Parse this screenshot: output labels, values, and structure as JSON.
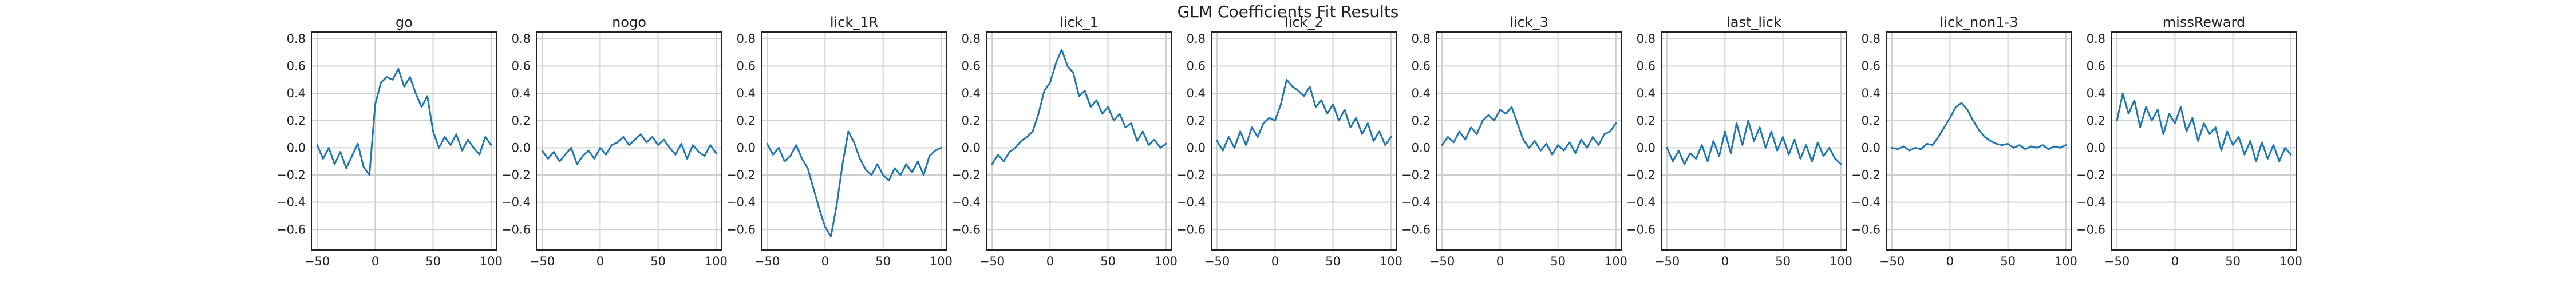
{
  "figure": {
    "title": "GLM Coefficients Fit Results"
  },
  "style": {
    "line_color": "#1f77b4",
    "grid_color": "#cfcfcf",
    "frame_color": "#222222",
    "background": "#ffffff"
  },
  "chart_data": [
    {
      "type": "line",
      "title": "go",
      "xlim": [
        -55,
        105
      ],
      "ylim": [
        -0.75,
        0.85
      ],
      "xticks": [
        -50,
        0,
        50,
        100
      ],
      "yticks": [
        -0.6,
        -0.4,
        -0.2,
        0.0,
        0.2,
        0.4,
        0.6,
        0.8
      ],
      "grid": true,
      "x": [
        -50,
        -45,
        -40,
        -35,
        -30,
        -25,
        -20,
        -15,
        -10,
        -5,
        0,
        5,
        10,
        15,
        20,
        25,
        30,
        35,
        40,
        45,
        50,
        55,
        60,
        65,
        70,
        75,
        80,
        85,
        90,
        95,
        100
      ],
      "y": [
        0.02,
        -0.08,
        0.0,
        -0.12,
        -0.03,
        -0.15,
        -0.06,
        0.03,
        -0.14,
        -0.2,
        0.32,
        0.48,
        0.52,
        0.5,
        0.58,
        0.45,
        0.52,
        0.4,
        0.3,
        0.38,
        0.12,
        0.0,
        0.08,
        0.02,
        0.1,
        -0.02,
        0.06,
        0.0,
        -0.05,
        0.08,
        0.02
      ]
    },
    {
      "type": "line",
      "title": "nogo",
      "xlim": [
        -55,
        105
      ],
      "ylim": [
        -0.75,
        0.85
      ],
      "xticks": [
        -50,
        0,
        50,
        100
      ],
      "yticks": [
        -0.6,
        -0.4,
        -0.2,
        0.0,
        0.2,
        0.4,
        0.6,
        0.8
      ],
      "grid": true,
      "x": [
        -50,
        -45,
        -40,
        -35,
        -30,
        -25,
        -20,
        -15,
        -10,
        -5,
        0,
        5,
        10,
        15,
        20,
        25,
        30,
        35,
        40,
        45,
        50,
        55,
        60,
        65,
        70,
        75,
        80,
        85,
        90,
        95,
        100
      ],
      "y": [
        -0.02,
        -0.08,
        -0.03,
        -0.1,
        -0.05,
        0.0,
        -0.12,
        -0.06,
        -0.02,
        -0.08,
        0.0,
        -0.05,
        0.02,
        0.04,
        0.08,
        0.02,
        0.06,
        0.1,
        0.04,
        0.08,
        0.02,
        0.06,
        0.0,
        -0.05,
        0.03,
        -0.08,
        0.02,
        -0.03,
        -0.06,
        0.02,
        -0.04
      ]
    },
    {
      "type": "line",
      "title": "lick_1R",
      "xlim": [
        -55,
        105
      ],
      "ylim": [
        -0.75,
        0.85
      ],
      "xticks": [
        -50,
        0,
        50,
        100
      ],
      "yticks": [
        -0.6,
        -0.4,
        -0.2,
        0.0,
        0.2,
        0.4,
        0.6,
        0.8
      ],
      "grid": true,
      "x": [
        -50,
        -45,
        -40,
        -35,
        -30,
        -25,
        -20,
        -15,
        -10,
        -5,
        0,
        5,
        10,
        15,
        20,
        25,
        30,
        35,
        40,
        45,
        50,
        55,
        60,
        65,
        70,
        75,
        80,
        85,
        90,
        95,
        100
      ],
      "y": [
        0.03,
        -0.05,
        0.0,
        -0.1,
        -0.06,
        0.02,
        -0.08,
        -0.15,
        -0.3,
        -0.45,
        -0.58,
        -0.65,
        -0.42,
        -0.12,
        0.12,
        0.04,
        -0.08,
        -0.16,
        -0.2,
        -0.12,
        -0.2,
        -0.24,
        -0.15,
        -0.2,
        -0.12,
        -0.18,
        -0.1,
        -0.2,
        -0.06,
        -0.02,
        0.0
      ]
    },
    {
      "type": "line",
      "title": "lick_1",
      "xlim": [
        -55,
        105
      ],
      "ylim": [
        -0.75,
        0.85
      ],
      "xticks": [
        -50,
        0,
        50,
        100
      ],
      "yticks": [
        -0.6,
        -0.4,
        -0.2,
        0.0,
        0.2,
        0.4,
        0.6,
        0.8
      ],
      "grid": true,
      "x": [
        -50,
        -45,
        -40,
        -35,
        -30,
        -25,
        -20,
        -15,
        -10,
        -5,
        0,
        5,
        10,
        15,
        20,
        25,
        30,
        35,
        40,
        45,
        50,
        55,
        60,
        65,
        70,
        75,
        80,
        85,
        90,
        95,
        100
      ],
      "y": [
        -0.12,
        -0.05,
        -0.1,
        -0.03,
        0.0,
        0.05,
        0.08,
        0.12,
        0.25,
        0.42,
        0.48,
        0.62,
        0.72,
        0.6,
        0.55,
        0.38,
        0.42,
        0.3,
        0.35,
        0.25,
        0.3,
        0.2,
        0.25,
        0.15,
        0.18,
        0.05,
        0.12,
        0.02,
        0.06,
        0.0,
        0.03
      ]
    },
    {
      "type": "line",
      "title": "lick_2",
      "xlim": [
        -55,
        105
      ],
      "ylim": [
        -0.75,
        0.85
      ],
      "xticks": [
        -50,
        0,
        50,
        100
      ],
      "yticks": [
        -0.6,
        -0.4,
        -0.2,
        0.0,
        0.2,
        0.4,
        0.6,
        0.8
      ],
      "grid": true,
      "x": [
        -50,
        -45,
        -40,
        -35,
        -30,
        -25,
        -20,
        -15,
        -10,
        -5,
        0,
        5,
        10,
        15,
        20,
        25,
        30,
        35,
        40,
        45,
        50,
        55,
        60,
        65,
        70,
        75,
        80,
        85,
        90,
        95,
        100
      ],
      "y": [
        0.05,
        -0.02,
        0.08,
        0.0,
        0.12,
        0.02,
        0.15,
        0.08,
        0.18,
        0.22,
        0.2,
        0.32,
        0.5,
        0.45,
        0.42,
        0.38,
        0.45,
        0.3,
        0.35,
        0.25,
        0.32,
        0.2,
        0.28,
        0.15,
        0.22,
        0.1,
        0.18,
        0.05,
        0.12,
        0.02,
        0.08
      ]
    },
    {
      "type": "line",
      "title": "lick_3",
      "xlim": [
        -55,
        105
      ],
      "ylim": [
        -0.75,
        0.85
      ],
      "xticks": [
        -50,
        0,
        50,
        100
      ],
      "yticks": [
        -0.6,
        -0.4,
        -0.2,
        0.0,
        0.2,
        0.4,
        0.6,
        0.8
      ],
      "grid": true,
      "x": [
        -50,
        -45,
        -40,
        -35,
        -30,
        -25,
        -20,
        -15,
        -10,
        -5,
        0,
        5,
        10,
        15,
        20,
        25,
        30,
        35,
        40,
        45,
        50,
        55,
        60,
        65,
        70,
        75,
        80,
        85,
        90,
        95,
        100
      ],
      "y": [
        0.02,
        0.08,
        0.04,
        0.12,
        0.06,
        0.15,
        0.1,
        0.2,
        0.24,
        0.2,
        0.28,
        0.25,
        0.3,
        0.18,
        0.06,
        0.0,
        0.05,
        -0.02,
        0.03,
        -0.05,
        0.02,
        -0.02,
        0.04,
        -0.04,
        0.06,
        0.0,
        0.08,
        0.02,
        0.1,
        0.12,
        0.18
      ]
    },
    {
      "type": "line",
      "title": "last_lick",
      "xlim": [
        -55,
        105
      ],
      "ylim": [
        -0.75,
        0.85
      ],
      "xticks": [
        -50,
        0,
        50,
        100
      ],
      "yticks": [
        -0.6,
        -0.4,
        -0.2,
        0.0,
        0.2,
        0.4,
        0.6,
        0.8
      ],
      "grid": true,
      "x": [
        -50,
        -45,
        -40,
        -35,
        -30,
        -25,
        -20,
        -15,
        -10,
        -5,
        0,
        5,
        10,
        15,
        20,
        25,
        30,
        35,
        40,
        45,
        50,
        55,
        60,
        65,
        70,
        75,
        80,
        85,
        90,
        95,
        100
      ],
      "y": [
        0.0,
        -0.1,
        -0.02,
        -0.12,
        -0.04,
        -0.08,
        0.02,
        -0.1,
        0.05,
        -0.06,
        0.12,
        -0.04,
        0.18,
        0.02,
        0.2,
        0.05,
        0.15,
        0.0,
        0.12,
        -0.02,
        0.08,
        -0.05,
        0.06,
        -0.08,
        0.02,
        -0.1,
        0.04,
        -0.06,
        0.0,
        -0.08,
        -0.12
      ]
    },
    {
      "type": "line",
      "title": "lick_non1-3",
      "xlim": [
        -55,
        105
      ],
      "ylim": [
        -0.75,
        0.85
      ],
      "xticks": [
        -50,
        0,
        50,
        100
      ],
      "yticks": [
        -0.6,
        -0.4,
        -0.2,
        0.0,
        0.2,
        0.4,
        0.6,
        0.8
      ],
      "grid": true,
      "x": [
        -50,
        -45,
        -40,
        -35,
        -30,
        -25,
        -20,
        -15,
        -10,
        -5,
        0,
        5,
        10,
        15,
        20,
        25,
        30,
        35,
        40,
        45,
        50,
        55,
        60,
        65,
        70,
        75,
        80,
        85,
        90,
        95,
        100
      ],
      "y": [
        0.0,
        -0.01,
        0.01,
        -0.02,
        0.0,
        -0.01,
        0.03,
        0.02,
        0.08,
        0.15,
        0.22,
        0.3,
        0.33,
        0.28,
        0.2,
        0.13,
        0.08,
        0.05,
        0.03,
        0.02,
        0.03,
        0.0,
        0.02,
        -0.01,
        0.01,
        0.0,
        0.02,
        -0.01,
        0.01,
        0.0,
        0.02
      ]
    },
    {
      "type": "line",
      "title": "missReward",
      "xlim": [
        -55,
        105
      ],
      "ylim": [
        -0.75,
        0.85
      ],
      "xticks": [
        -50,
        0,
        50,
        100
      ],
      "yticks": [
        -0.6,
        -0.4,
        -0.2,
        0.0,
        0.2,
        0.4,
        0.6,
        0.8
      ],
      "grid": true,
      "x": [
        -50,
        -45,
        -40,
        -35,
        -30,
        -25,
        -20,
        -15,
        -10,
        -5,
        0,
        5,
        10,
        15,
        20,
        25,
        30,
        35,
        40,
        45,
        50,
        55,
        60,
        65,
        70,
        75,
        80,
        85,
        90,
        95,
        100
      ],
      "y": [
        0.2,
        0.4,
        0.25,
        0.35,
        0.15,
        0.3,
        0.2,
        0.28,
        0.1,
        0.25,
        0.18,
        0.3,
        0.12,
        0.22,
        0.05,
        0.18,
        0.1,
        0.15,
        -0.02,
        0.12,
        0.02,
        0.08,
        -0.05,
        0.05,
        -0.1,
        0.04,
        -0.08,
        0.02,
        -0.1,
        0.0,
        -0.05
      ]
    }
  ]
}
